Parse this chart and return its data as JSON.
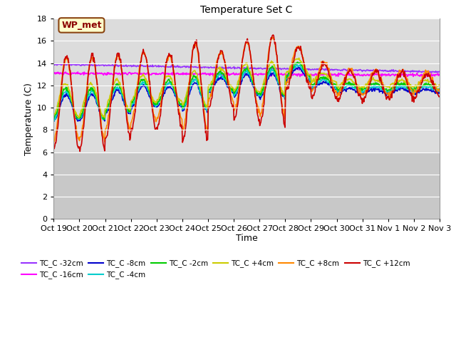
{
  "title": "Temperature Set C",
  "ylabel": "Temperature (C)",
  "xlabel": "Time",
  "ylim": [
    0,
    18
  ],
  "yticks": [
    0,
    2,
    4,
    6,
    8,
    10,
    12,
    14,
    16,
    18
  ],
  "xtick_labels": [
    "Oct 19",
    "Oct 20",
    "Oct 21",
    "Oct 22",
    "Oct 23",
    "Oct 24",
    "Oct 25",
    "Oct 26",
    "Oct 27",
    "Oct 28",
    "Oct 29",
    "Oct 30",
    "Oct 31",
    "Nov 1",
    "Nov 2",
    "Nov 3"
  ],
  "colors": {
    "TC_C -32cm": "#9933FF",
    "TC_C -16cm": "#FF00FF",
    "TC_C -8cm": "#0000CC",
    "TC_C -4cm": "#00CCCC",
    "TC_C -2cm": "#00CC00",
    "TC_C +4cm": "#CCCC00",
    "TC_C +8cm": "#FF8800",
    "TC_C +12cm": "#CC0000"
  },
  "wp_met_box": {
    "text": "WP_met",
    "facecolor": "#FFFFCC",
    "edgecolor": "#8B4513",
    "textcolor": "#8B0000"
  },
  "plot_bg_upper": "#DCDCDC",
  "plot_bg_lower": "#C8C8C8",
  "bg_split": 6.0
}
